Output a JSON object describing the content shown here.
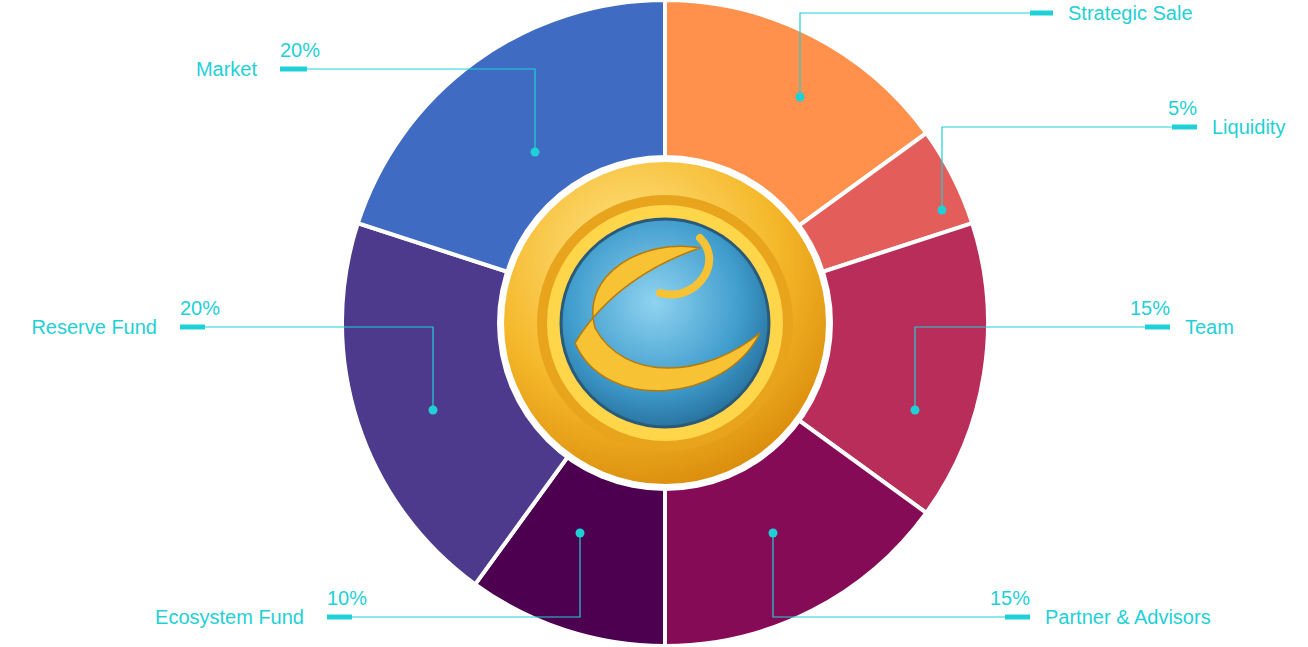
{
  "chart_data": {
    "type": "pie",
    "categories": [
      "Strategic Sale",
      "Liquidity",
      "Team",
      "Partner & Advisors",
      "Ecosystem Fund",
      "Reserve Fund",
      "Market"
    ],
    "values": [
      15,
      5,
      15,
      15,
      10,
      20,
      20
    ],
    "value_labels": [
      null,
      "5%",
      "15%",
      "15%",
      "10%",
      "20%",
      "20%"
    ],
    "colors": [
      "#ff914d",
      "#e35e5a",
      "#b82d5a",
      "#860b56",
      "#4e0050",
      "#4e3a8c",
      "#3f6cc2"
    ],
    "data_labels": true
  }
}
